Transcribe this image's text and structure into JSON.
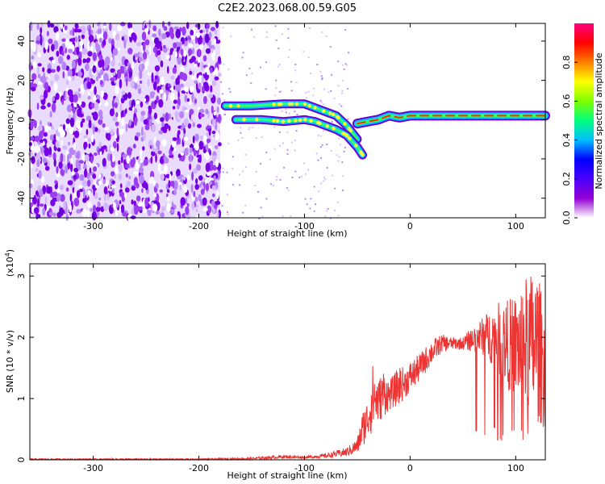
{
  "page_title": "C2E2.2023.068.00.59.G05",
  "chart_data": [
    {
      "type": "heatmap",
      "title": "C2E2.2023.068.00.59.G05",
      "xlabel": "Height of straight line (km)",
      "ylabel": "Frequency (Hz)",
      "xlim": [
        -360,
        128
      ],
      "ylim": [
        -50,
        49
      ],
      "x_ticks": [
        -300,
        -200,
        -100,
        0,
        100
      ],
      "y_ticks": [
        -40,
        -20,
        0,
        20,
        40
      ],
      "colorbar": {
        "label": "Normalized spectral amplitude",
        "range": [
          0.0,
          1.0
        ],
        "ticks": [
          "0.0",
          "0.2",
          "0.4",
          "0.6",
          "0.8"
        ],
        "colormap": [
          "#ffffff",
          "#9400d3",
          "#4b00ff",
          "#0000ff",
          "#00bfff",
          "#00ff7f",
          "#7fff00",
          "#ffff00",
          "#ff7f00",
          "#ff0000",
          "#ff0080"
        ]
      },
      "noise_region_x": [
        -360,
        -180
      ],
      "traces": [
        {
          "name": "upper_branch",
          "x": [
            -175,
            -150,
            -120,
            -100,
            -85,
            -70,
            -60,
            -50
          ],
          "y": [
            7,
            7,
            8,
            8,
            5,
            2,
            -3,
            -10
          ]
        },
        {
          "name": "lower_branch",
          "x": [
            -165,
            -140,
            -120,
            -100,
            -90,
            -80,
            -70,
            -60,
            -50,
            -45
          ],
          "y": [
            0,
            0,
            -1,
            0,
            -1,
            -3,
            -5,
            -8,
            -14,
            -18
          ]
        },
        {
          "name": "main_signal",
          "x": [
            -50,
            -40,
            -30,
            -20,
            -10,
            0,
            20,
            40,
            60,
            80,
            100,
            128
          ],
          "y": [
            -2,
            -1,
            0,
            2,
            1,
            2,
            2,
            2,
            2,
            2,
            2,
            2
          ]
        }
      ]
    },
    {
      "type": "line",
      "xlabel": "Height of straight line (km)",
      "ylabel": "SNR (10 * v/v)",
      "y_multiplier": "(x10",
      "y_multiplier_exp": "4",
      "y_multiplier_close": ")",
      "xlim": [
        -360,
        128
      ],
      "ylim": [
        0,
        3.2
      ],
      "x_ticks": [
        -300,
        -200,
        -100,
        0,
        100
      ],
      "y_ticks": [
        0,
        1,
        2,
        3
      ],
      "color": "#ee3333",
      "envelope": {
        "x": [
          -360,
          -200,
          -150,
          -120,
          -100,
          -80,
          -60,
          -50,
          -45,
          -40,
          -35,
          -30,
          -25,
          -20,
          -15,
          -10,
          -5,
          0,
          10,
          20,
          30,
          40,
          50,
          60,
          70,
          80,
          90,
          100,
          110,
          120,
          128
        ],
        "lo": [
          0.0,
          0.0,
          0.0,
          0.02,
          0.02,
          0.03,
          0.05,
          0.1,
          0.2,
          0.35,
          0.45,
          0.6,
          0.7,
          0.8,
          0.85,
          0.9,
          1.0,
          1.1,
          1.3,
          1.55,
          1.75,
          1.8,
          1.8,
          1.75,
          1.7,
          1.5,
          1.2,
          1.0,
          0.8,
          0.6,
          0.5
        ],
        "hi": [
          0.02,
          0.02,
          0.04,
          0.08,
          0.06,
          0.1,
          0.2,
          0.35,
          0.8,
          1.0,
          1.6,
          1.3,
          1.5,
          1.3,
          1.4,
          1.55,
          1.5,
          1.6,
          1.75,
          1.95,
          2.05,
          2.0,
          2.0,
          2.2,
          2.35,
          2.55,
          2.6,
          2.7,
          3.0,
          3.15,
          2.4
        ]
      }
    }
  ]
}
